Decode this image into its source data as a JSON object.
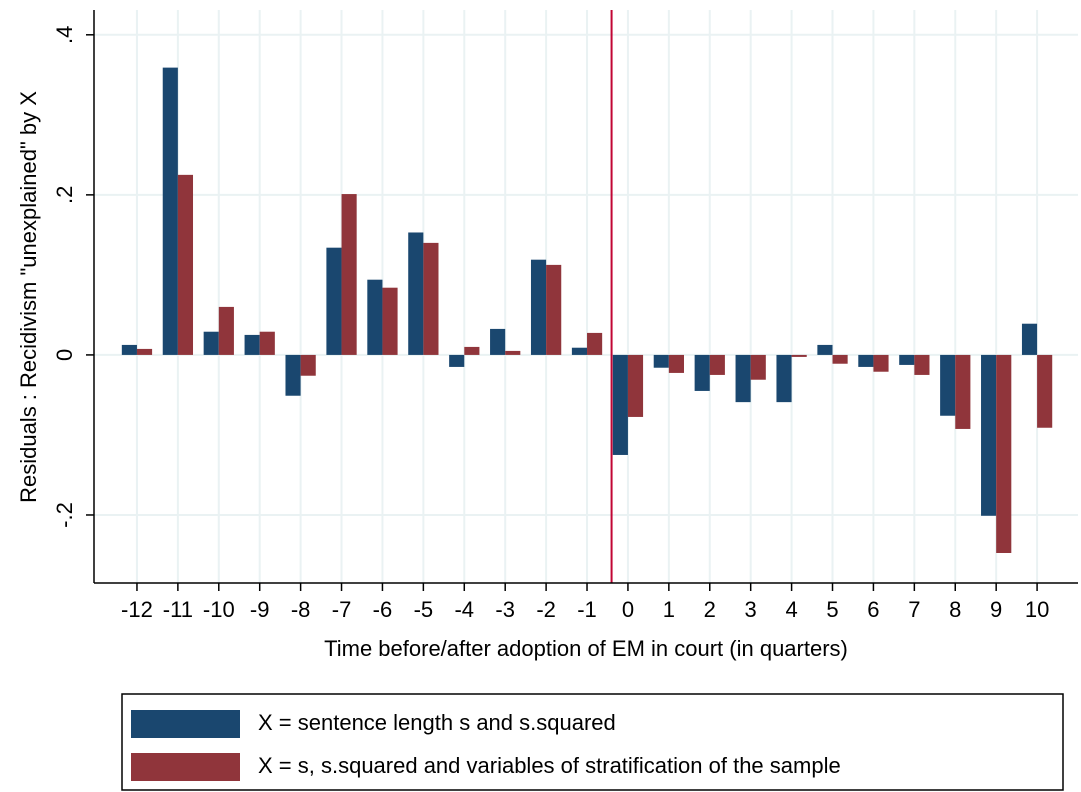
{
  "chart_data": {
    "type": "bar",
    "x_label": "Time before/after adoption of EM in court (in quarters)",
    "y_label": "Residuals : Recidivism \"unexplained\" by X",
    "x": [
      -12,
      -11,
      -10,
      -9,
      -8,
      -7,
      -6,
      -5,
      -4,
      -3,
      -2,
      -1,
      0,
      1,
      2,
      3,
      4,
      5,
      6,
      7,
      8,
      9,
      10
    ],
    "xlim": [
      -13.05,
      11.0
    ],
    "xticks": [
      -12,
      -11,
      -10,
      -9,
      -8,
      -7,
      -6,
      -5,
      -4,
      -3,
      -2,
      -1,
      0,
      1,
      2,
      3,
      4,
      5,
      6,
      7,
      8,
      9,
      10
    ],
    "ylim": [
      -0.285,
      0.431
    ],
    "yticks": [
      {
        "value": -0.2,
        "label": "-.2"
      },
      0,
      {
        "value": 0.2,
        "label": ".2"
      },
      {
        "value": 0.4,
        "label": ".4"
      }
    ],
    "grid": true,
    "vline": {
      "x": -0.4,
      "color": "#c10534"
    },
    "legend": "bottom",
    "series": [
      {
        "name": "X = sentence length s and s.squared",
        "color": "#1a476f",
        "values": [
          0.0125,
          0.359,
          0.029,
          0.025,
          -0.051,
          0.134,
          0.094,
          0.153,
          -0.015,
          0.0325,
          0.119,
          0.009,
          -0.125,
          -0.016,
          -0.045,
          -0.059,
          -0.059,
          0.0125,
          -0.015,
          -0.0125,
          -0.076,
          -0.201,
          0.039
        ]
      },
      {
        "name": "X = s, s.squared and variables of stratification of the sample",
        "color": "#90353b",
        "values": [
          0.0075,
          0.225,
          0.06,
          0.029,
          -0.026,
          0.201,
          0.084,
          0.14,
          0.01,
          0.005,
          0.1125,
          0.0275,
          -0.0775,
          -0.0225,
          -0.025,
          -0.031,
          -0.0025,
          -0.011,
          -0.021,
          -0.025,
          -0.0925,
          -0.2475,
          -0.091
        ]
      }
    ]
  }
}
